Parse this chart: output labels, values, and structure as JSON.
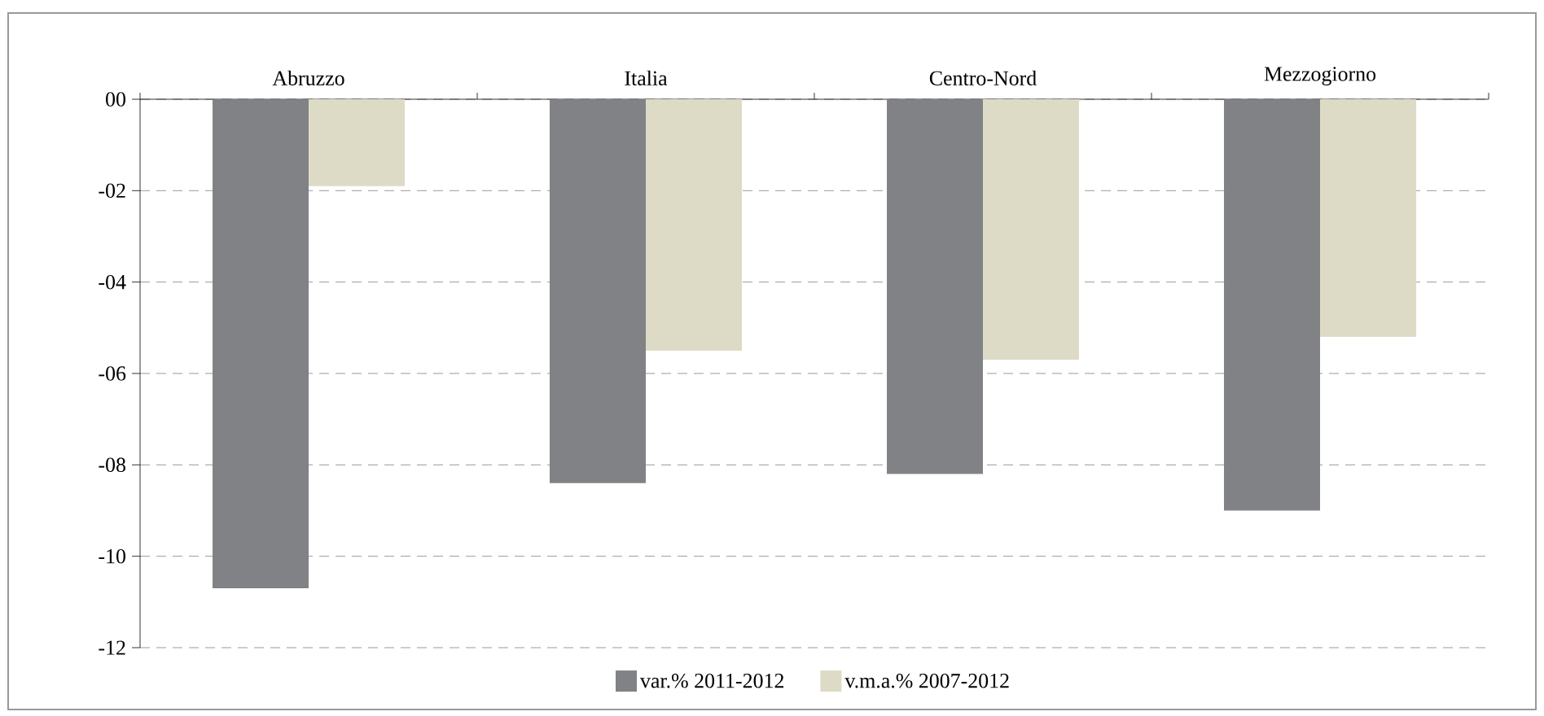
{
  "chart_data": {
    "type": "bar",
    "categories": [
      "Abruzzo",
      "Italia",
      "Centro-Nord",
      "Mezzogiorno"
    ],
    "series": [
      {
        "name": "var.% 2011-2012",
        "color": "#818286",
        "values": [
          -10.7,
          -8.4,
          -8.2,
          -9.0
        ]
      },
      {
        "name": "v.m.a.% 2007-2012",
        "color": "#dddbc6",
        "values": [
          -1.9,
          -5.5,
          -5.7,
          -5.2
        ]
      }
    ],
    "ylim": [
      -12,
      0
    ],
    "yticks": [
      {
        "value": 0,
        "label": "00"
      },
      {
        "value": -2,
        "label": "-02"
      },
      {
        "value": -4,
        "label": "-04"
      },
      {
        "value": -6,
        "label": "-06"
      },
      {
        "value": -8,
        "label": "-08"
      },
      -10,
      -12
    ],
    "grid": "y",
    "legend": "bottom"
  }
}
